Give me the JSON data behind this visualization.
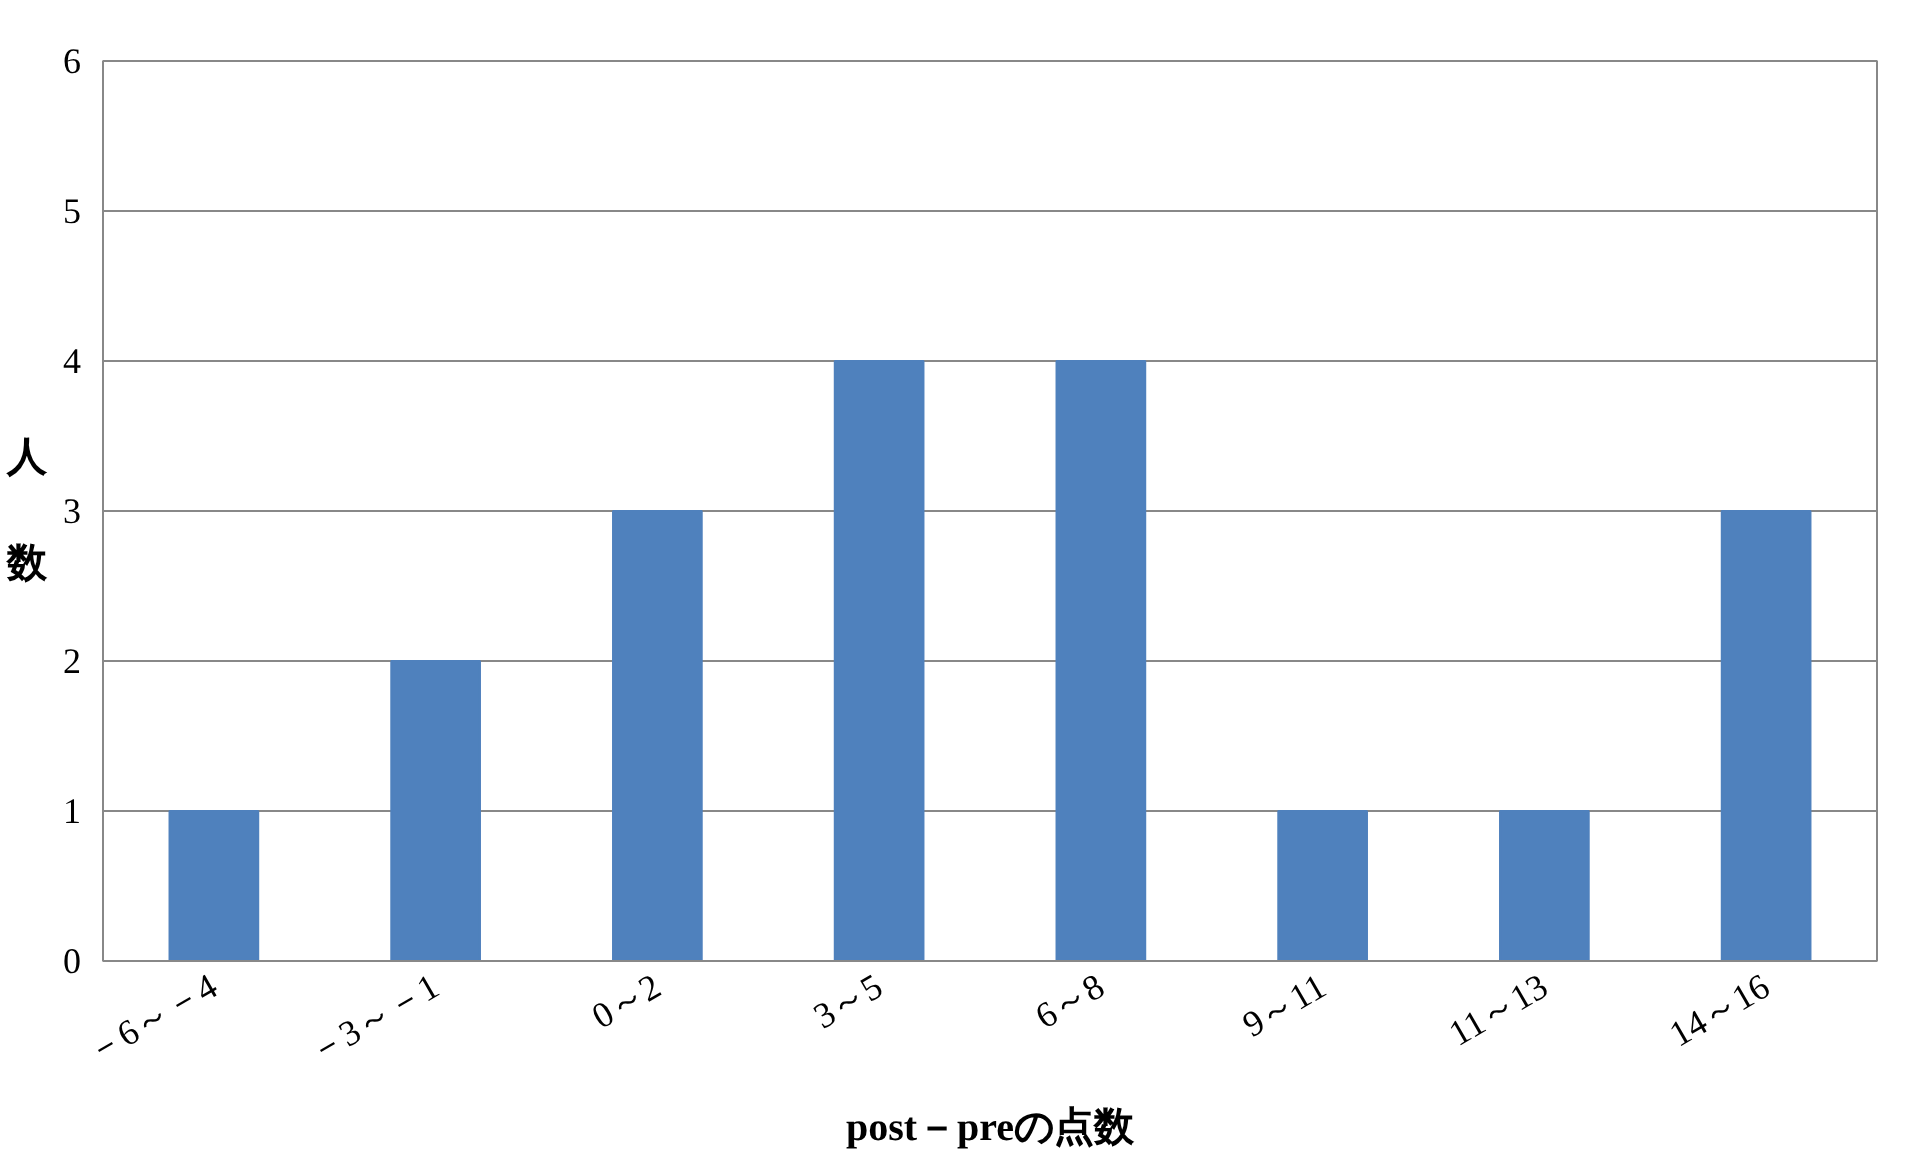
{
  "chart_data": {
    "type": "bar",
    "xlabel": "post－preの点数",
    "ylabel": "人数",
    "categories": [
      "－6～－4",
      "－3～－1",
      "0～2",
      "3～5",
      "6～8",
      "9～11",
      "11～13",
      "14～16"
    ],
    "values": [
      1,
      2,
      3,
      4,
      4,
      1,
      1,
      3
    ],
    "color": "#4f81bd",
    "ylim": [
      0,
      6
    ],
    "yticks": [
      0,
      1,
      2,
      3,
      4,
      5,
      6
    ],
    "grid": "y"
  }
}
